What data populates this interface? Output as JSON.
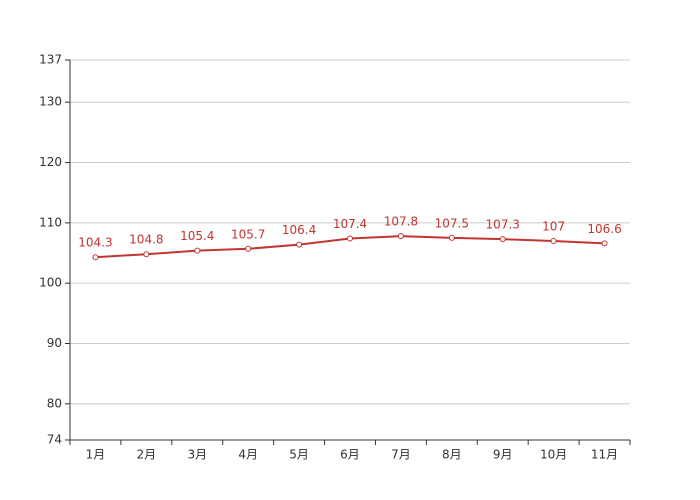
{
  "chart_data": {
    "type": "line",
    "categories": [
      "1月",
      "2月",
      "3月",
      "4月",
      "5月",
      "6月",
      "7月",
      "8月",
      "9月",
      "10月",
      "11月"
    ],
    "values": [
      104.3,
      104.8,
      105.4,
      105.7,
      106.4,
      107.4,
      107.8,
      107.5,
      107.3,
      107,
      106.6
    ],
    "color": "#c23531",
    "ylim": [
      74,
      137
    ],
    "yticks": [
      74,
      80,
      90,
      100,
      110,
      120,
      130,
      137
    ],
    "grid": true
  }
}
